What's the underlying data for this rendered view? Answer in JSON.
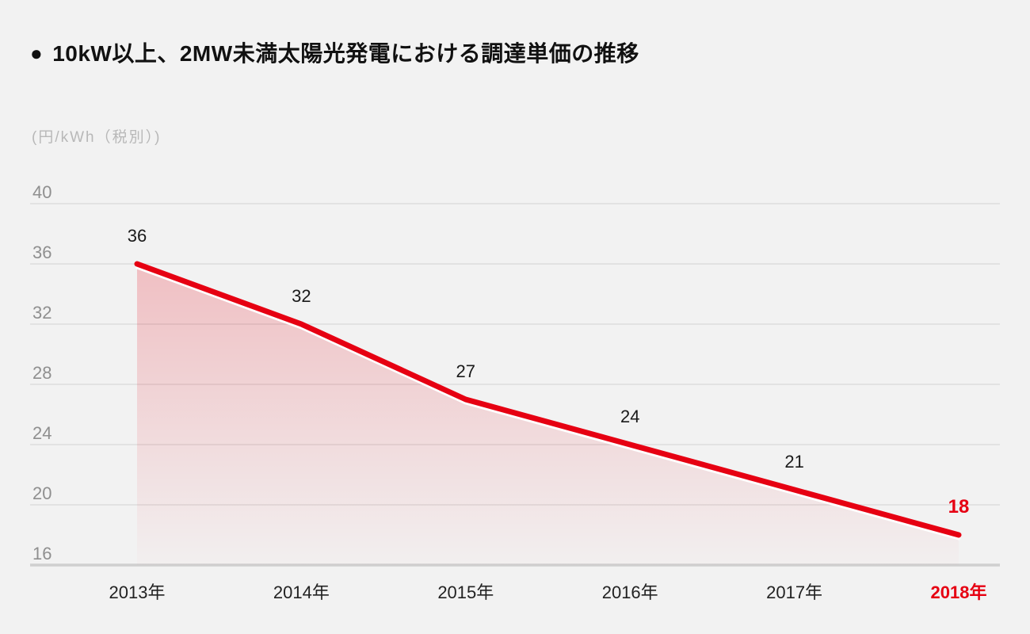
{
  "header": {
    "bullet": "●",
    "title": "10kW以上、2MW未満太陽光発電における調達単価の推移"
  },
  "chart_data": {
    "type": "area",
    "title": "10kW以上、2MW未満太陽光発電における調達単価の推移",
    "unit_label": "(円/kWh（税別）)",
    "categories": [
      "2013年",
      "2014年",
      "2015年",
      "2016年",
      "2017年",
      "2018年"
    ],
    "values": [
      36,
      32,
      27,
      24,
      21,
      18
    ],
    "y_ticks": [
      40,
      36,
      32,
      28,
      24,
      20,
      16
    ],
    "ylim": [
      16,
      42
    ],
    "xlabel": "",
    "ylabel": "円/kWh（税別）",
    "grid": "horizontal-only",
    "legend": "none",
    "highlighted_category": "2018年",
    "highlighted_value": 18,
    "colors": {
      "background": "#f2f2f2",
      "line": "#e60012",
      "line_underlay": "#ffffff",
      "area_fill_top": "rgba(230,0,18,0.21)",
      "area_fill_bottom": "rgba(230,0,18,0.01)",
      "grid_line": "#dcdcdc",
      "axis_line": "#cfcfcf",
      "tick_text": "#8f8f8f",
      "unit_text": "#b8b8b8",
      "label_text": "#1a1a1a",
      "x_label_text": "#222222",
      "highlight_text": "#e60012",
      "title_text": "#111111"
    }
  }
}
